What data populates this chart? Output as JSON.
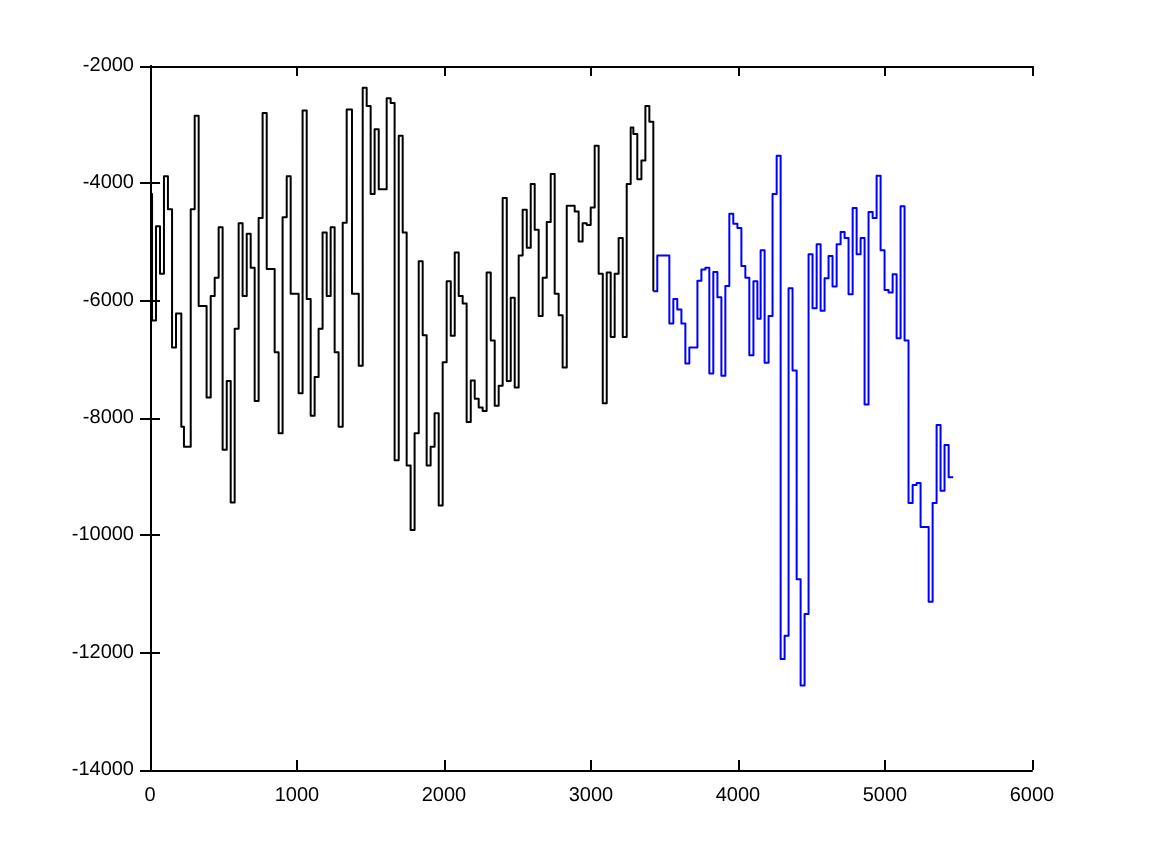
{
  "chart_data": {
    "type": "step",
    "xlim": [
      0,
      6000
    ],
    "xticks": [
      0,
      1000,
      2000,
      3000,
      4000,
      5000,
      6000
    ],
    "ylim": [
      -14000,
      -2000
    ],
    "yticks": [
      -14000,
      -12000,
      -10000,
      -8000,
      -6000,
      -4000,
      -2000
    ],
    "grid": false,
    "marker": "none",
    "series": [
      {
        "color": "#000000",
        "x": [
          0,
          14,
          41,
          68,
          95,
          122,
          150,
          177,
          213,
          231,
          277,
          304,
          331,
          385,
          413,
          440,
          467,
          494,
          522,
          549,
          576,
          603,
          630,
          658,
          685,
          712,
          739,
          766,
          794,
          848,
          875,
          902,
          930,
          957,
          1011,
          1038,
          1066,
          1093,
          1120,
          1147,
          1174,
          1202,
          1229,
          1256,
          1283,
          1311,
          1338,
          1374,
          1420,
          1447,
          1474,
          1501,
          1528,
          1556,
          1610,
          1637,
          1664,
          1692,
          1719,
          1746,
          1773,
          1800,
          1828,
          1855,
          1882,
          1909,
          1936,
          1964,
          1991,
          2018,
          2046,
          2073,
          2100,
          2127,
          2154,
          2182,
          2209,
          2236,
          2263,
          2290,
          2318,
          2345,
          2372,
          2399,
          2427,
          2454,
          2481,
          2508,
          2535,
          2563,
          2590,
          2617,
          2644,
          2671,
          2699,
          2726,
          2753,
          2780,
          2807,
          2835,
          2889,
          2916,
          2943,
          2971,
          2998,
          3025,
          3052,
          3080,
          3107,
          3134,
          3161,
          3188,
          3216,
          3243,
          3270,
          3288,
          3315,
          3343,
          3370,
          3397,
          3424
        ],
        "values": [
          -4180,
          -6340,
          -4730,
          -5540,
          -3880,
          -4440,
          -6800,
          -6220,
          -8150,
          -8490,
          -4440,
          -2850,
          -6090,
          -7650,
          -5920,
          -5610,
          -4750,
          -8540,
          -7370,
          -9440,
          -6480,
          -4680,
          -5920,
          -4860,
          -5440,
          -7710,
          -4590,
          -2800,
          -5460,
          -6880,
          -8260,
          -4580,
          -3880,
          -5880,
          -7580,
          -2760,
          -5970,
          -7960,
          -7300,
          -6480,
          -4840,
          -5920,
          -4750,
          -6880,
          -8150,
          -4670,
          -2740,
          -5880,
          -7110,
          -2370,
          -2680,
          -4180,
          -3080,
          -4100,
          -2550,
          -2630,
          -8720,
          -3190,
          -4840,
          -8810,
          -9910,
          -8260,
          -5330,
          -6590,
          -8810,
          -8490,
          -7920,
          -9490,
          -7050,
          -5670,
          -6600,
          -5180,
          -5920,
          -6050,
          -8070,
          -7360,
          -7670,
          -7820,
          -7880,
          -5520,
          -6680,
          -7790,
          -7450,
          -4250,
          -7370,
          -5950,
          -7480,
          -5230,
          -4450,
          -5100,
          -4010,
          -4790,
          -6260,
          -5610,
          -4660,
          -3840,
          -5880,
          -6250,
          -7140,
          -4380,
          -4480,
          -4990,
          -4680,
          -4710,
          -4410,
          -3360,
          -5540,
          -7750,
          -5520,
          -6620,
          -5540,
          -4930,
          -6620,
          -4010,
          -3050,
          -3160,
          -3930,
          -3610,
          -2680,
          -2950,
          -5840
        ]
      },
      {
        "color": "#0000ff",
        "x": [
          3424,
          3451,
          3533,
          3560,
          3587,
          3615,
          3642,
          3669,
          3724,
          3751,
          3778,
          3805,
          3832,
          3860,
          3887,
          3914,
          3941,
          3968,
          3996,
          4023,
          4050,
          4077,
          4105,
          4132,
          4154,
          4181,
          4208,
          4235,
          4263,
          4290,
          4317,
          4344,
          4371,
          4399,
          4426,
          4453,
          4480,
          4507,
          4535,
          4562,
          4589,
          4616,
          4643,
          4671,
          4698,
          4725,
          4752,
          4780,
          4807,
          4834,
          4861,
          4888,
          4916,
          4943,
          4970,
          4997,
          5024,
          5052,
          5079,
          5106,
          5133,
          5160,
          5188,
          5215,
          5242,
          5297,
          5324,
          5351,
          5378,
          5405,
          5433,
          5464
        ],
        "values": [
          -5840,
          -5230,
          -6390,
          -5970,
          -6150,
          -6390,
          -7070,
          -6800,
          -5660,
          -5470,
          -5440,
          -7240,
          -5510,
          -5940,
          -7280,
          -5750,
          -4520,
          -4690,
          -4760,
          -5410,
          -5610,
          -6930,
          -5670,
          -6310,
          -5140,
          -7060,
          -6260,
          -4180,
          -3530,
          -12110,
          -11710,
          -5790,
          -7190,
          -10750,
          -12560,
          -11340,
          -5210,
          -6130,
          -5040,
          -6170,
          -5620,
          -5240,
          -5760,
          -5040,
          -4830,
          -4930,
          -5890,
          -4420,
          -5210,
          -4930,
          -7770,
          -4490,
          -4590,
          -3870,
          -5140,
          -5820,
          -5860,
          -5550,
          -6640,
          -4390,
          -6680,
          -9450,
          -9140,
          -9110,
          -9860,
          -11130,
          -9450,
          -8120,
          -9240,
          -8460,
          -9010,
          -9010
        ]
      }
    ]
  }
}
